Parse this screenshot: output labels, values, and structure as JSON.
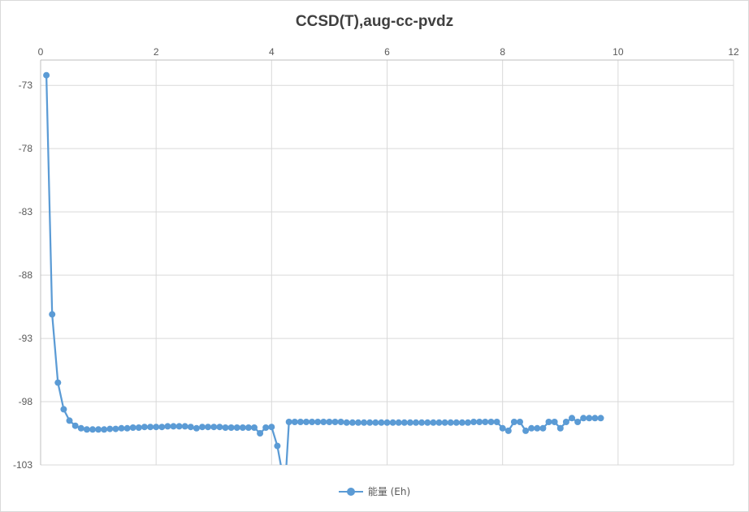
{
  "chart_data": {
    "type": "scatter",
    "title": "CCSD(T),aug-cc-pvdz",
    "xlabel": "",
    "ylabel": "",
    "xlim": [
      0,
      12
    ],
    "ylim": [
      -103,
      -71
    ],
    "x_ticks": [
      0,
      2,
      4,
      6,
      8,
      10,
      12
    ],
    "y_ticks": [
      -73,
      -78,
      -83,
      -88,
      -93,
      -98,
      -103
    ],
    "x_axis_position": "top",
    "grid": true,
    "legend": "bottom",
    "color": "#5b9bd5",
    "series": [
      {
        "name": "能量 (Eh)",
        "points": [
          [
            0.1,
            -72.2
          ],
          [
            0.2,
            -91.1
          ],
          [
            0.3,
            -96.5
          ],
          [
            0.4,
            -98.6
          ],
          [
            0.5,
            -99.5
          ],
          [
            0.6,
            -99.9
          ],
          [
            0.7,
            -100.1
          ],
          [
            0.8,
            -100.2
          ],
          [
            0.9,
            -100.2
          ],
          [
            1.0,
            -100.2
          ],
          [
            1.1,
            -100.2
          ],
          [
            1.2,
            -100.15
          ],
          [
            1.3,
            -100.15
          ],
          [
            1.4,
            -100.1
          ],
          [
            1.5,
            -100.1
          ],
          [
            1.6,
            -100.05
          ],
          [
            1.7,
            -100.05
          ],
          [
            1.8,
            -100.0
          ],
          [
            1.9,
            -100.0
          ],
          [
            2.0,
            -100.0
          ],
          [
            2.1,
            -100.0
          ],
          [
            2.2,
            -99.95
          ],
          [
            2.3,
            -99.95
          ],
          [
            2.4,
            -99.95
          ],
          [
            2.5,
            -99.95
          ],
          [
            2.6,
            -100.0
          ],
          [
            2.7,
            -100.1
          ],
          [
            2.8,
            -100.0
          ],
          [
            2.9,
            -100.0
          ],
          [
            3.0,
            -100.0
          ],
          [
            3.1,
            -100.0
          ],
          [
            3.2,
            -100.05
          ],
          [
            3.3,
            -100.05
          ],
          [
            3.4,
            -100.05
          ],
          [
            3.5,
            -100.05
          ],
          [
            3.6,
            -100.05
          ],
          [
            3.7,
            -100.05
          ],
          [
            3.8,
            -100.5
          ],
          [
            3.9,
            -100.05
          ],
          [
            4.0,
            -100.0
          ],
          [
            4.1,
            -101.5
          ],
          [
            4.18,
            -103.5
          ],
          [
            4.25,
            -103.5
          ],
          [
            4.3,
            -99.6
          ],
          [
            4.4,
            -99.6
          ],
          [
            4.5,
            -99.6
          ],
          [
            4.6,
            -99.6
          ],
          [
            4.7,
            -99.6
          ],
          [
            4.8,
            -99.6
          ],
          [
            4.9,
            -99.6
          ],
          [
            5.0,
            -99.6
          ],
          [
            5.1,
            -99.6
          ],
          [
            5.2,
            -99.6
          ],
          [
            5.3,
            -99.65
          ],
          [
            5.4,
            -99.65
          ],
          [
            5.5,
            -99.65
          ],
          [
            5.6,
            -99.65
          ],
          [
            5.7,
            -99.65
          ],
          [
            5.8,
            -99.65
          ],
          [
            5.9,
            -99.65
          ],
          [
            6.0,
            -99.65
          ],
          [
            6.1,
            -99.65
          ],
          [
            6.2,
            -99.65
          ],
          [
            6.3,
            -99.65
          ],
          [
            6.4,
            -99.65
          ],
          [
            6.5,
            -99.65
          ],
          [
            6.6,
            -99.65
          ],
          [
            6.7,
            -99.65
          ],
          [
            6.8,
            -99.65
          ],
          [
            6.9,
            -99.65
          ],
          [
            7.0,
            -99.65
          ],
          [
            7.1,
            -99.65
          ],
          [
            7.2,
            -99.65
          ],
          [
            7.3,
            -99.65
          ],
          [
            7.4,
            -99.65
          ],
          [
            7.5,
            -99.6
          ],
          [
            7.6,
            -99.6
          ],
          [
            7.7,
            -99.6
          ],
          [
            7.8,
            -99.6
          ],
          [
            7.9,
            -99.6
          ],
          [
            8.0,
            -100.1
          ],
          [
            8.1,
            -100.3
          ],
          [
            8.2,
            -99.6
          ],
          [
            8.3,
            -99.6
          ],
          [
            8.4,
            -100.3
          ],
          [
            8.5,
            -100.1
          ],
          [
            8.6,
            -100.1
          ],
          [
            8.7,
            -100.1
          ],
          [
            8.8,
            -99.6
          ],
          [
            8.9,
            -99.6
          ],
          [
            9.0,
            -100.1
          ],
          [
            9.1,
            -99.6
          ],
          [
            9.2,
            -99.3
          ],
          [
            9.3,
            -99.6
          ],
          [
            9.4,
            -99.3
          ],
          [
            9.5,
            -99.3
          ],
          [
            9.6,
            -99.3
          ],
          [
            9.7,
            -99.3
          ]
        ]
      }
    ]
  }
}
